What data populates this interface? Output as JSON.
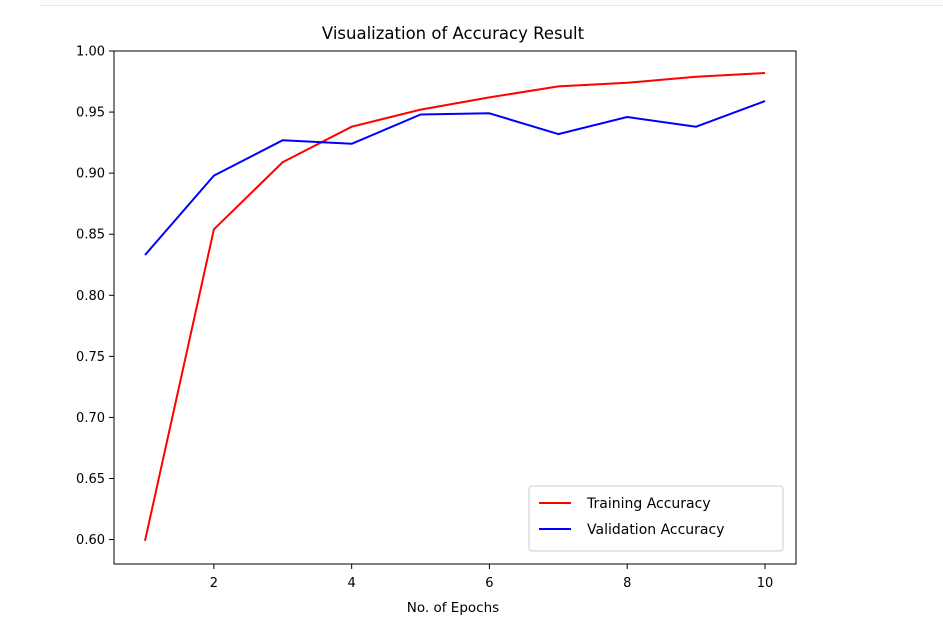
{
  "chart_data": {
    "type": "line",
    "title": "Visualization of Accuracy Result",
    "xlabel": "No. of Epochs",
    "ylabel": "",
    "x": [
      1,
      2,
      3,
      4,
      5,
      6,
      7,
      8,
      9,
      10
    ],
    "xlim": [
      0.55,
      10.45
    ],
    "ylim": [
      0.58,
      1.0
    ],
    "xticks": [
      2,
      4,
      6,
      8,
      10
    ],
    "xtick_labels": [
      "2",
      "4",
      "6",
      "8",
      "10"
    ],
    "yticks": [
      0.6,
      0.65,
      0.7,
      0.75,
      0.8,
      0.85,
      0.9,
      0.95,
      1.0
    ],
    "ytick_labels": [
      "0.60",
      "0.65",
      "0.70",
      "0.75",
      "0.80",
      "0.85",
      "0.90",
      "0.95",
      "1.00"
    ],
    "grid": false,
    "legend_position": "lower-right",
    "series": [
      {
        "name": "Training Accuracy",
        "color": "#ff0000",
        "values": [
          0.599,
          0.854,
          0.909,
          0.938,
          0.952,
          0.962,
          0.971,
          0.974,
          0.979,
          0.982
        ]
      },
      {
        "name": "Validation Accuracy",
        "color": "#0000ff",
        "values": [
          0.833,
          0.898,
          0.927,
          0.924,
          0.948,
          0.949,
          0.932,
          0.946,
          0.938,
          0.959
        ]
      }
    ]
  }
}
